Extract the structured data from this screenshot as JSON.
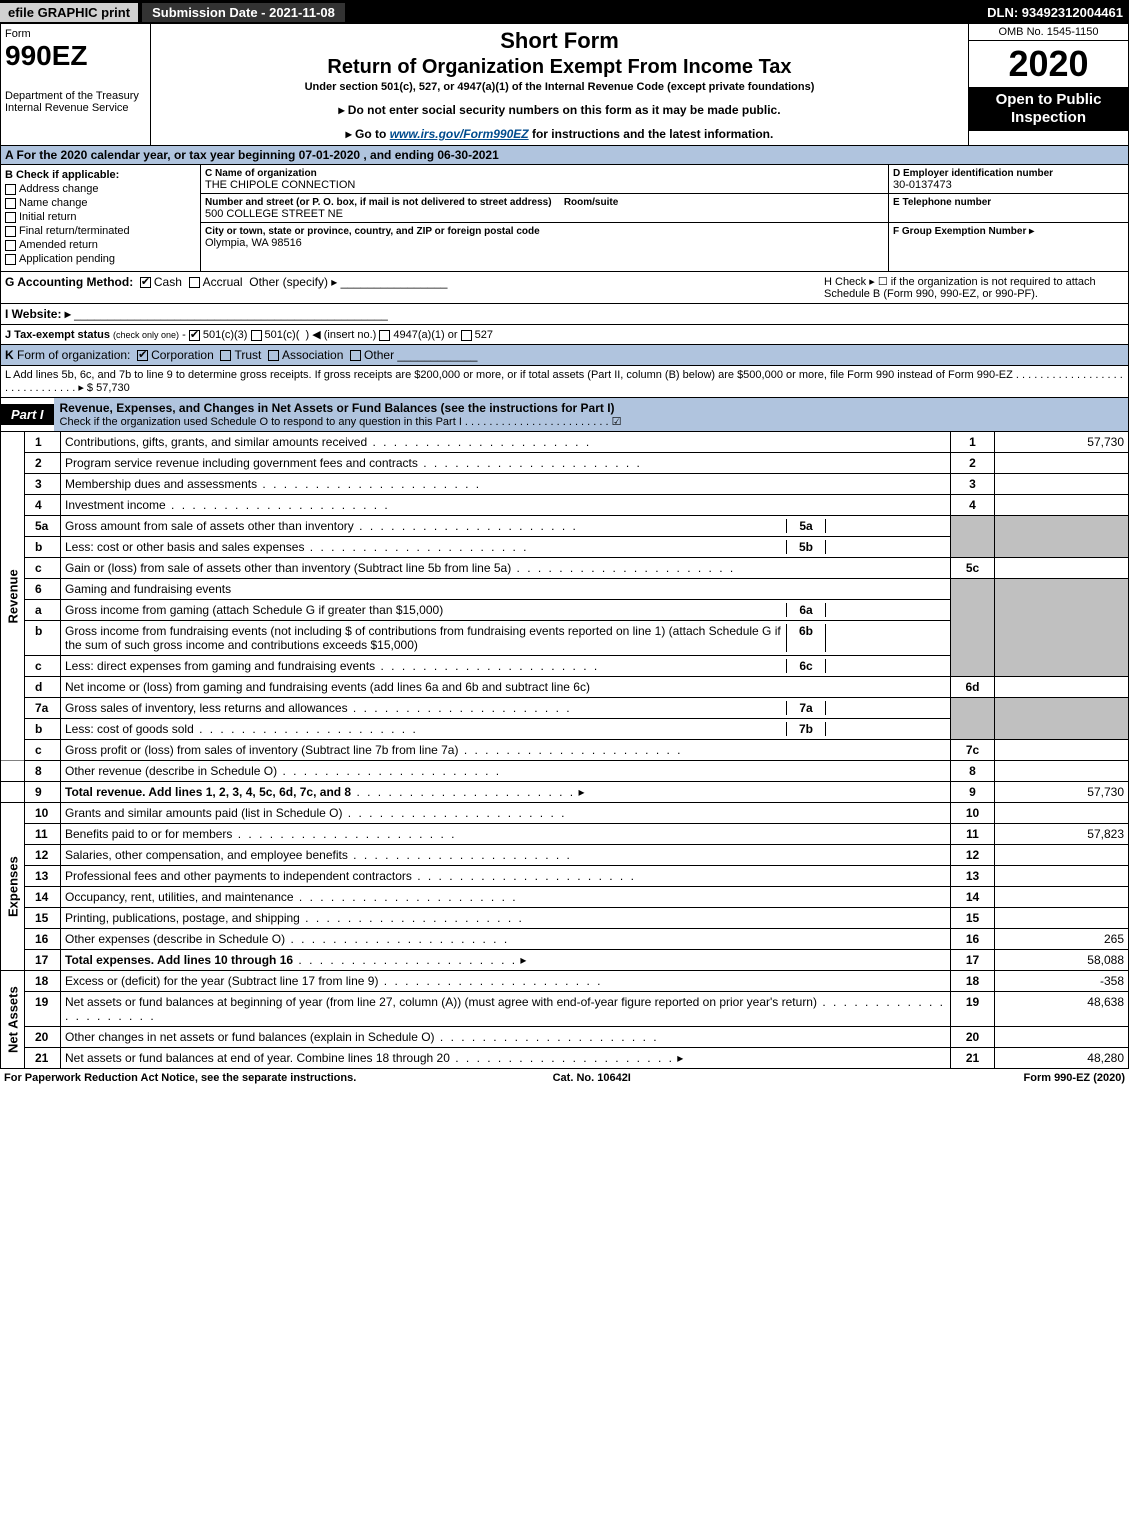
{
  "topbar": {
    "efile": "efile GRAPHIC print",
    "submission": "Submission Date - 2021-11-08",
    "dln": "DLN: 93492312004461"
  },
  "header": {
    "form_word": "Form",
    "form_num": "990EZ",
    "dept": "Department of the Treasury Internal Revenue Service",
    "short_form": "Short Form",
    "title": "Return of Organization Exempt From Income Tax",
    "subtitle": "Under section 501(c), 527, or 4947(a)(1) of the Internal Revenue Code (except private foundations)",
    "note1": "▸ Do not enter social security numbers on this form as it may be made public.",
    "note2_prefix": "▸ Go to ",
    "note2_link": "www.irs.gov/Form990EZ",
    "note2_suffix": " for instructions and the latest information.",
    "omb": "OMB No. 1545-1150",
    "year": "2020",
    "open": "Open to Public Inspection"
  },
  "row_a": "A For the 2020 calendar year, or tax year beginning 07-01-2020 , and ending 06-30-2021",
  "section_b": {
    "b_label": "B  Check if applicable:",
    "checks": [
      "Address change",
      "Name change",
      "Initial return",
      "Final return/terminated",
      "Amended return",
      "Application pending"
    ],
    "c_label": "C Name of organization",
    "c_name": "THE CHIPOLE CONNECTION",
    "c_addr_label": "Number and street (or P. O. box, if mail is not delivered to street address)",
    "c_room_label": "Room/suite",
    "c_addr": "500 COLLEGE STREET NE",
    "c_city_label": "City or town, state or province, country, and ZIP or foreign postal code",
    "c_city": "Olympia, WA   98516",
    "d_label": "D Employer identification number",
    "d_val": "30-0137473",
    "e_label": "E Telephone number",
    "f_label": "F Group Exemption Number   ▸"
  },
  "row_g": {
    "left_label": "G Accounting Method:",
    "cash": "Cash",
    "accrual": "Accrual",
    "other": "Other (specify) ▸",
    "h_text": "H  Check ▸   ☐  if the organization is not required to attach Schedule B (Form 990, 990-EZ, or 990-PF)."
  },
  "row_i": "I Website: ▸",
  "row_j": "J Tax-exempt status (check only one) -  ☑ 501(c)(3)  ☐ 501(c)(  ) ◀ (insert no.)  ☐ 4947(a)(1) or  ☐ 527",
  "row_k": "K Form of organization:   ☑ Corporation   ☐ Trust   ☐ Association   ☐ Other",
  "row_l": {
    "text": "L Add lines 5b, 6c, and 7b to line 9 to determine gross receipts. If gross receipts are $200,000 or more, or if total assets (Part II, column (B) below) are $500,000 or more, file Form 990 instead of Form 990-EZ  . . . . . . . . . . . . . . . . . . . . . . . . . . . . . .  ▸ $ 57,730"
  },
  "part1": {
    "tag": "Part I",
    "title": "Revenue, Expenses, and Changes in Net Assets or Fund Balances (see the instructions for Part I)",
    "check_line": "Check if the organization used Schedule O to respond to any question in this Part I . . . . . . . . . . . . . . . . . . . . . . . .",
    "check_marked": "☑"
  },
  "sections": {
    "revenue": "Revenue",
    "expenses": "Expenses",
    "netassets": "Net Assets"
  },
  "lines": {
    "l1": {
      "n": "1",
      "t": "Contributions, gifts, grants, and similar amounts received",
      "box": "1",
      "amt": "57,730"
    },
    "l2": {
      "n": "2",
      "t": "Program service revenue including government fees and contracts",
      "box": "2",
      "amt": ""
    },
    "l3": {
      "n": "3",
      "t": "Membership dues and assessments",
      "box": "3",
      "amt": ""
    },
    "l4": {
      "n": "4",
      "t": "Investment income",
      "box": "4",
      "amt": ""
    },
    "l5a": {
      "n": "5a",
      "t": "Gross amount from sale of assets other than inventory",
      "sb": "5a"
    },
    "l5b": {
      "n": "b",
      "t": "Less: cost or other basis and sales expenses",
      "sb": "5b"
    },
    "l5c": {
      "n": "c",
      "t": "Gain or (loss) from sale of assets other than inventory (Subtract line 5b from line 5a)",
      "box": "5c",
      "amt": ""
    },
    "l6": {
      "n": "6",
      "t": "Gaming and fundraising events"
    },
    "l6a": {
      "n": "a",
      "t": "Gross income from gaming (attach Schedule G if greater than $15,000)",
      "sb": "6a"
    },
    "l6b": {
      "n": "b",
      "t": "Gross income from fundraising events (not including $                    of contributions from fundraising events reported on line 1) (attach Schedule G if the sum of such gross income and contributions exceeds $15,000)",
      "sb": "6b"
    },
    "l6c": {
      "n": "c",
      "t": "Less: direct expenses from gaming and fundraising events",
      "sb": "6c"
    },
    "l6d": {
      "n": "d",
      "t": "Net income or (loss) from gaming and fundraising events (add lines 6a and 6b and subtract line 6c)",
      "box": "6d",
      "amt": ""
    },
    "l7a": {
      "n": "7a",
      "t": "Gross sales of inventory, less returns and allowances",
      "sb": "7a"
    },
    "l7b": {
      "n": "b",
      "t": "Less: cost of goods sold",
      "sb": "7b"
    },
    "l7c": {
      "n": "c",
      "t": "Gross profit or (loss) from sales of inventory (Subtract line 7b from line 7a)",
      "box": "7c",
      "amt": ""
    },
    "l8": {
      "n": "8",
      "t": "Other revenue (describe in Schedule O)",
      "box": "8",
      "amt": ""
    },
    "l9": {
      "n": "9",
      "t": "Total revenue. Add lines 1, 2, 3, 4, 5c, 6d, 7c, and 8",
      "box": "9",
      "amt": "57,730",
      "arrow": true,
      "bold": true
    },
    "l10": {
      "n": "10",
      "t": "Grants and similar amounts paid (list in Schedule O)",
      "box": "10",
      "amt": ""
    },
    "l11": {
      "n": "11",
      "t": "Benefits paid to or for members",
      "box": "11",
      "amt": "57,823"
    },
    "l12": {
      "n": "12",
      "t": "Salaries, other compensation, and employee benefits",
      "box": "12",
      "amt": ""
    },
    "l13": {
      "n": "13",
      "t": "Professional fees and other payments to independent contractors",
      "box": "13",
      "amt": ""
    },
    "l14": {
      "n": "14",
      "t": "Occupancy, rent, utilities, and maintenance",
      "box": "14",
      "amt": ""
    },
    "l15": {
      "n": "15",
      "t": "Printing, publications, postage, and shipping",
      "box": "15",
      "amt": ""
    },
    "l16": {
      "n": "16",
      "t": "Other expenses (describe in Schedule O)",
      "box": "16",
      "amt": "265"
    },
    "l17": {
      "n": "17",
      "t": "Total expenses. Add lines 10 through 16",
      "box": "17",
      "amt": "58,088",
      "arrow": true,
      "bold": true
    },
    "l18": {
      "n": "18",
      "t": "Excess or (deficit) for the year (Subtract line 17 from line 9)",
      "box": "18",
      "amt": "-358"
    },
    "l19": {
      "n": "19",
      "t": "Net assets or fund balances at beginning of year (from line 27, column (A)) (must agree with end-of-year figure reported on prior year's return)",
      "box": "19",
      "amt": "48,638"
    },
    "l20": {
      "n": "20",
      "t": "Other changes in net assets or fund balances (explain in Schedule O)",
      "box": "20",
      "amt": ""
    },
    "l21": {
      "n": "21",
      "t": "Net assets or fund balances at end of year. Combine lines 18 through 20",
      "box": "21",
      "amt": "48,280",
      "arrow": true
    }
  },
  "footer": {
    "left": "For Paperwork Reduction Act Notice, see the separate instructions.",
    "mid": "Cat. No. 10642I",
    "right": "Form 990-EZ (2020)"
  }
}
